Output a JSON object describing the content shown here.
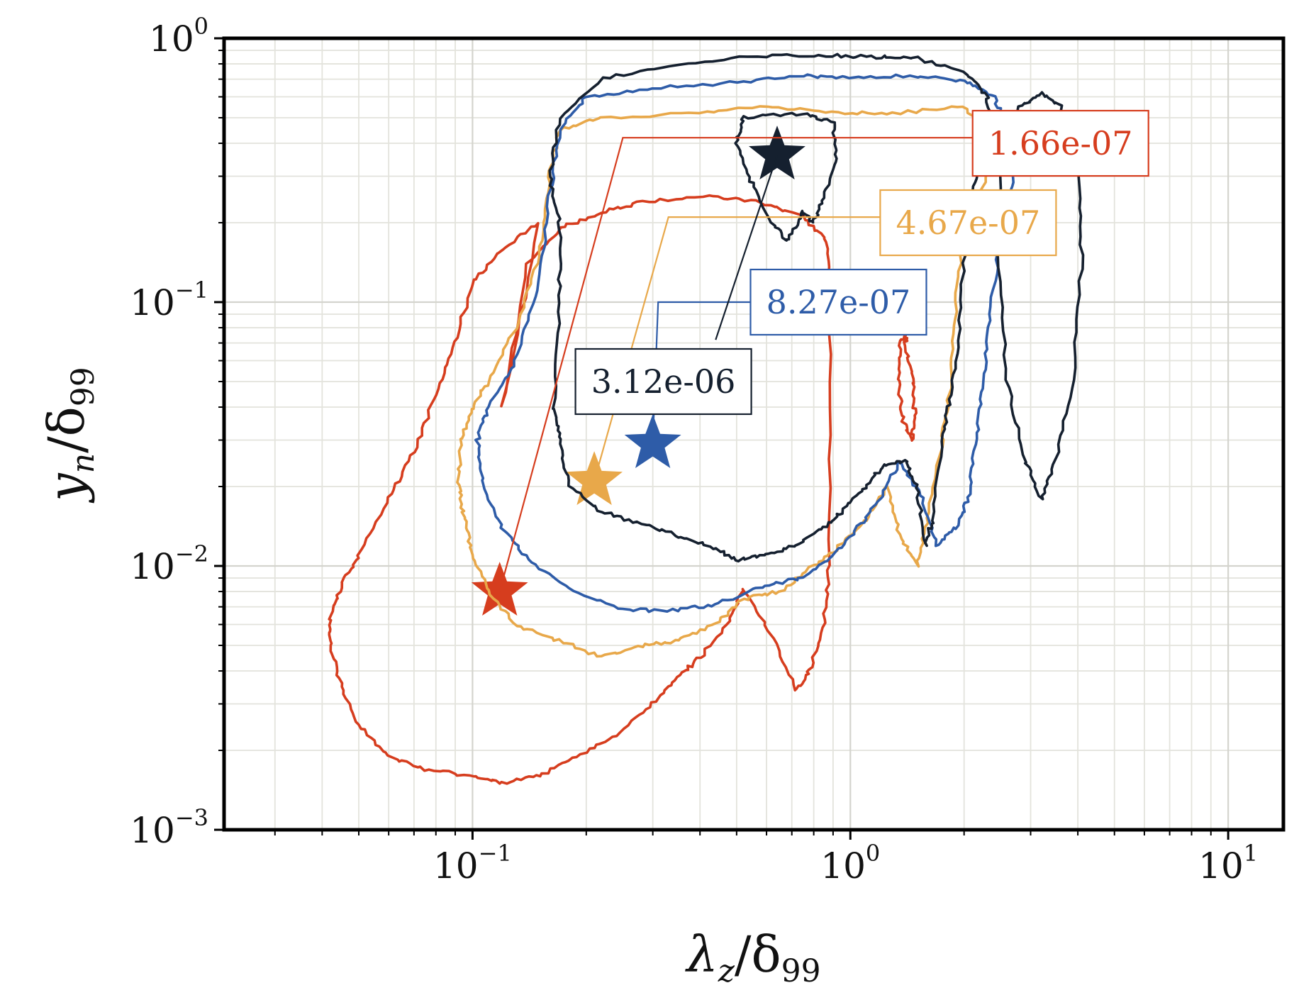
{
  "chart_data": {
    "type": "line",
    "x_scale": "log",
    "y_scale": "log",
    "xlim": [
      0.022,
      14
    ],
    "ylim": [
      0.001,
      1
    ],
    "grid": true,
    "xlabel": {
      "main": "λ",
      "sub": "z",
      "sep": "/δ",
      "sub2": "99"
    },
    "ylabel": {
      "main": "y",
      "sub": "n",
      "sep": "/δ",
      "sub2": "99"
    },
    "x_ticks": [
      {
        "value": 0.1,
        "base": "10",
        "exp": "−1"
      },
      {
        "value": 1,
        "base": "10",
        "exp": "0"
      },
      {
        "value": 10,
        "base": "10",
        "exp": "1"
      }
    ],
    "y_ticks": [
      {
        "value": 0.001,
        "base": "10",
        "exp": "−3"
      },
      {
        "value": 0.01,
        "base": "10",
        "exp": "−2"
      },
      {
        "value": 0.1,
        "base": "10",
        "exp": "−1"
      },
      {
        "value": 1,
        "base": "10",
        "exp": "0"
      }
    ],
    "series": [
      {
        "color": "#d63d1e",
        "contour": [
          [
            0.12,
            0.04
          ],
          [
            0.14,
            0.14
          ],
          [
            0.17,
            0.19
          ],
          [
            0.22,
            0.22
          ],
          [
            0.28,
            0.24
          ],
          [
            0.42,
            0.25
          ],
          [
            0.58,
            0.24
          ],
          [
            0.75,
            0.21
          ],
          [
            0.87,
            0.17
          ],
          [
            0.88,
            0.1
          ],
          [
            0.88,
            0.01
          ],
          [
            0.85,
            0.006
          ],
          [
            0.78,
            0.004
          ],
          [
            0.72,
            0.0034
          ],
          [
            0.62,
            0.0055
          ],
          [
            0.52,
            0.0082
          ],
          [
            0.48,
            0.0062
          ],
          [
            0.4,
            0.0045
          ],
          [
            0.35,
            0.0038
          ],
          [
            0.3,
            0.003
          ],
          [
            0.24,
            0.0023
          ],
          [
            0.19,
            0.0019
          ],
          [
            0.15,
            0.0016
          ],
          [
            0.12,
            0.0015
          ],
          [
            0.1,
            0.0016
          ],
          [
            0.075,
            0.0017
          ],
          [
            0.06,
            0.0019
          ],
          [
            0.05,
            0.0025
          ],
          [
            0.045,
            0.0035
          ],
          [
            0.042,
            0.005
          ],
          [
            0.042,
            0.0065
          ],
          [
            0.045,
            0.0085
          ],
          [
            0.05,
            0.011
          ],
          [
            0.06,
            0.018
          ],
          [
            0.07,
            0.027
          ],
          [
            0.08,
            0.045
          ],
          [
            0.09,
            0.07
          ],
          [
            0.1,
            0.12
          ],
          [
            0.12,
            0.16
          ],
          [
            0.15,
            0.2
          ]
        ],
        "lobes": [
          [
            [
              1.4,
              0.07
            ],
            [
              1.46,
              0.05
            ],
            [
              1.48,
              0.038
            ],
            [
              1.45,
              0.03
            ],
            [
              1.38,
              0.035
            ],
            [
              1.34,
              0.05
            ],
            [
              1.36,
              0.07
            ],
            [
              1.4,
              0.078
            ]
          ]
        ],
        "peak": [
          0.118,
          0.008
        ],
        "label": "1.66e-07",
        "label_pos": [
          3.6,
          0.4
        ],
        "leader": [
          [
            0.118,
            0.008
          ],
          [
            0.25,
            0.42
          ],
          [
            2.6,
            0.42
          ]
        ]
      },
      {
        "color": "#e8a84a",
        "contour": [
          [
            0.1,
            0.04
          ],
          [
            0.11,
            0.05
          ],
          [
            0.13,
            0.08
          ],
          [
            0.15,
            0.15
          ],
          [
            0.16,
            0.3
          ],
          [
            0.17,
            0.45
          ],
          [
            0.22,
            0.5
          ],
          [
            0.4,
            0.52
          ],
          [
            0.6,
            0.55
          ],
          [
            0.9,
            0.52
          ],
          [
            1.3,
            0.52
          ],
          [
            2.0,
            0.55
          ],
          [
            2.3,
            0.45
          ],
          [
            2.4,
            0.35
          ],
          [
            2.3,
            0.3
          ],
          [
            2.0,
            0.2
          ],
          [
            1.9,
            0.1
          ],
          [
            1.85,
            0.05
          ],
          [
            1.75,
            0.03
          ],
          [
            1.6,
            0.015
          ],
          [
            1.5,
            0.01
          ],
          [
            1.35,
            0.013
          ],
          [
            1.25,
            0.02
          ],
          [
            1.1,
            0.015
          ],
          [
            0.95,
            0.012
          ],
          [
            0.8,
            0.01
          ],
          [
            0.65,
            0.008
          ],
          [
            0.52,
            0.0075
          ],
          [
            0.44,
            0.006
          ],
          [
            0.35,
            0.0052
          ],
          [
            0.28,
            0.005
          ],
          [
            0.22,
            0.0045
          ],
          [
            0.17,
            0.0052
          ],
          [
            0.13,
            0.006
          ],
          [
            0.11,
            0.008
          ],
          [
            0.1,
            0.011
          ],
          [
            0.095,
            0.015
          ],
          [
            0.092,
            0.02
          ],
          [
            0.093,
            0.03
          ]
        ],
        "lobes": [],
        "peak": [
          0.21,
          0.021
        ],
        "label": "4.67e-07",
        "label_pos": [
          2.05,
          0.2
        ],
        "leader": [
          [
            0.21,
            0.021
          ],
          [
            0.33,
            0.21
          ],
          [
            1.9,
            0.21
          ]
        ]
      },
      {
        "color": "#2e5ca8",
        "contour": [
          [
            0.11,
            0.04
          ],
          [
            0.13,
            0.06
          ],
          [
            0.15,
            0.12
          ],
          [
            0.16,
            0.25
          ],
          [
            0.17,
            0.45
          ],
          [
            0.2,
            0.6
          ],
          [
            0.3,
            0.65
          ],
          [
            0.5,
            0.68
          ],
          [
            0.75,
            0.72
          ],
          [
            1.0,
            0.71
          ],
          [
            1.5,
            0.72
          ],
          [
            2.0,
            0.69
          ],
          [
            2.4,
            0.6
          ],
          [
            2.6,
            0.45
          ],
          [
            2.7,
            0.3
          ],
          [
            2.5,
            0.18
          ],
          [
            2.35,
            0.09
          ],
          [
            2.25,
            0.05
          ],
          [
            2.15,
            0.03
          ],
          [
            2.05,
            0.018
          ],
          [
            1.9,
            0.014
          ],
          [
            1.7,
            0.012
          ],
          [
            1.55,
            0.018
          ],
          [
            1.35,
            0.025
          ],
          [
            1.2,
            0.018
          ],
          [
            1.05,
            0.014
          ],
          [
            0.9,
            0.011
          ],
          [
            0.75,
            0.009
          ],
          [
            0.6,
            0.0085
          ],
          [
            0.45,
            0.0072
          ],
          [
            0.35,
            0.0068
          ],
          [
            0.25,
            0.0068
          ],
          [
            0.18,
            0.0082
          ],
          [
            0.14,
            0.0105
          ],
          [
            0.12,
            0.014
          ],
          [
            0.107,
            0.02
          ],
          [
            0.103,
            0.03
          ]
        ],
        "lobes": [],
        "peak": [
          0.3,
          0.029
        ],
        "label": "8.27e-07",
        "label_pos": [
          0.93,
          0.1
        ],
        "leader": [
          [
            0.3,
            0.029
          ],
          [
            0.31,
            0.1
          ],
          [
            0.9,
            0.1
          ]
        ]
      },
      {
        "color": "#15202f",
        "contour": [
          [
            0.165,
            0.04
          ],
          [
            0.17,
            0.1
          ],
          [
            0.17,
            0.2
          ],
          [
            0.16,
            0.3
          ],
          [
            0.17,
            0.5
          ],
          [
            0.22,
            0.7
          ],
          [
            0.35,
            0.8
          ],
          [
            0.6,
            0.86
          ],
          [
            0.9,
            0.86
          ],
          [
            1.2,
            0.85
          ],
          [
            1.5,
            0.84
          ],
          [
            2.0,
            0.75
          ],
          [
            2.3,
            0.6
          ],
          [
            2.35,
            0.45
          ],
          [
            2.2,
            0.35
          ],
          [
            2.1,
            0.25
          ],
          [
            2.0,
            0.15
          ],
          [
            1.95,
            0.08
          ],
          [
            1.85,
            0.045
          ],
          [
            1.75,
            0.03
          ],
          [
            1.65,
            0.015
          ],
          [
            1.58,
            0.012
          ],
          [
            1.5,
            0.02
          ],
          [
            1.4,
            0.025
          ],
          [
            1.22,
            0.024
          ],
          [
            1.1,
            0.02
          ],
          [
            0.95,
            0.016
          ],
          [
            0.85,
            0.014
          ],
          [
            0.72,
            0.012
          ],
          [
            0.6,
            0.011
          ],
          [
            0.5,
            0.0105
          ],
          [
            0.42,
            0.012
          ],
          [
            0.35,
            0.013
          ],
          [
            0.28,
            0.0145
          ],
          [
            0.22,
            0.016
          ],
          [
            0.18,
            0.02
          ],
          [
            0.17,
            0.03
          ]
        ],
        "lobes": [
          [
            [
              0.52,
              0.5
            ],
            [
              0.75,
              0.52
            ],
            [
              0.9,
              0.48
            ],
            [
              0.92,
              0.35
            ],
            [
              0.85,
              0.25
            ],
            [
              0.8,
              0.2
            ],
            [
              0.75,
              0.22
            ],
            [
              0.68,
              0.17
            ],
            [
              0.62,
              0.2
            ],
            [
              0.55,
              0.28
            ],
            [
              0.5,
              0.4
            ]
          ],
          [
            [
              3.2,
              0.62
            ],
            [
              3.6,
              0.55
            ],
            [
              4.0,
              0.35
            ],
            [
              4.1,
              0.15
            ],
            [
              3.9,
              0.05
            ],
            [
              3.5,
              0.025
            ],
            [
              3.2,
              0.018
            ],
            [
              2.9,
              0.025
            ],
            [
              2.6,
              0.05
            ],
            [
              2.45,
              0.15
            ],
            [
              2.5,
              0.35
            ],
            [
              2.8,
              0.55
            ]
          ]
        ],
        "peak": [
          0.64,
          0.36
        ],
        "label": "3.12e-06",
        "label_pos": [
          0.32,
          0.05
        ],
        "leader": [
          [
            0.64,
            0.36
          ],
          [
            0.44,
            0.072
          ]
        ]
      }
    ]
  }
}
